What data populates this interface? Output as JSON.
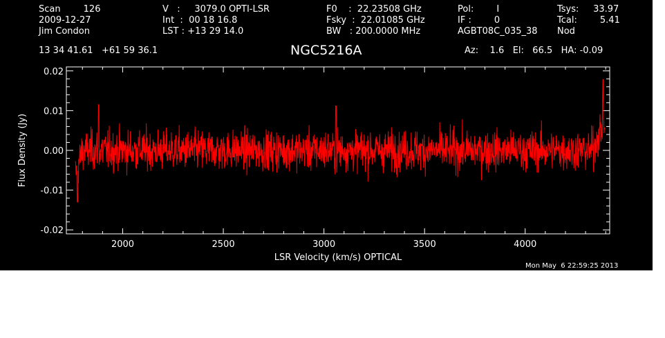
{
  "header": {
    "col1": [
      "Scan        126",
      "2009-12-27",
      "Jim Condon"
    ],
    "col2": [
      "V   :     3079.0 OPTI-LSR",
      "Int  :  00 18 16.8",
      "LST : +13 29 14.0"
    ],
    "col3": [
      "F0    :  22.23508 GHz",
      "Fsky  :  22.01085 GHz",
      "BW   : 200.0000 MHz"
    ],
    "col4": [
      "Pol:        I",
      "IF :        0",
      "AGBT08C_035_38"
    ],
    "col5": [
      "Tsys:     33.97",
      "Tcal:        5.41",
      "Nod"
    ],
    "coords": "13 34 41.61   +61 59 36.1",
    "source": "NGC5216A",
    "azel": "Az:    1.6   El:   66.5   HA: -0.09"
  },
  "footer": {
    "date": "Mon May  6 22:59:25 2013"
  },
  "colors": {
    "background": "#000000",
    "axes": "#ffffff",
    "series": "#ff0000"
  },
  "chart_data": {
    "type": "line",
    "xlabel": "LSR Velocity (km/s) OPTICAL",
    "ylabel": "Flux Density (Jy)",
    "xlim": [
      1720,
      4420
    ],
    "ylim": [
      -0.021,
      0.021
    ],
    "xticks": [
      2000,
      2500,
      3000,
      3500,
      4000
    ],
    "xtick_labels": [
      "2000",
      "2500",
      "3000",
      "3500",
      "4000"
    ],
    "yticks": [
      -0.02,
      -0.01,
      0.0,
      0.01,
      0.02
    ],
    "ytick_labels": [
      "-0.02",
      "-0.01",
      "0.00",
      "0.01",
      "0.02"
    ],
    "series": [
      {
        "x_start": 1765,
        "x_end": 4395,
        "noise_rms_jy": 0.0035,
        "baseline_jy": 0.0,
        "features": [
          {
            "x": 1775,
            "y": -0.013
          },
          {
            "x": 1880,
            "y": 0.0115
          },
          {
            "x": 3060,
            "y": 0.0112
          },
          {
            "x": 4387,
            "y": 0.0178
          }
        ]
      }
    ]
  }
}
